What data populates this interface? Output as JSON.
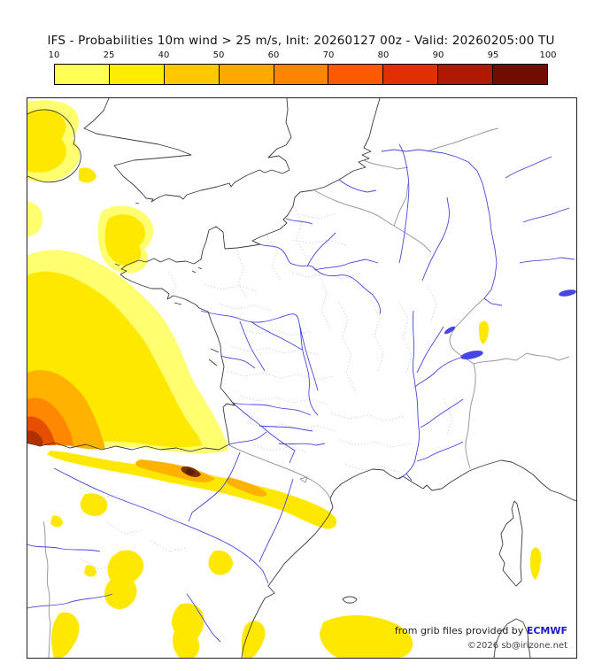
{
  "title": "IFS - Probabilities 10m wind > 25 m/s, Init: 20260127 00z - Valid: 20260205:00 TU",
  "colorbar": {
    "tick_labels": [
      "10",
      "25",
      "40",
      "50",
      "60",
      "70",
      "80",
      "90",
      "95",
      "100"
    ],
    "segment_colors": [
      "#ffff54",
      "#ffec00",
      "#ffc800",
      "#ffa800",
      "#ff8400",
      "#fc5a00",
      "#e03000",
      "#b01800",
      "#700c00"
    ]
  },
  "map": {
    "attribution_prefix": "from grib files provided by ",
    "attribution_source": "ECMWF",
    "copyright": "©2026 sb@irizone.net",
    "colors": {
      "coastline": "#3c3c3c",
      "river": "#4646e0",
      "country_border": "#9a9a9a",
      "department_border": "#c4c4c4",
      "shade_light": "#ffff70",
      "shade_yellow": "#ffe800",
      "shade_orange": "#ffb200",
      "shade_deep_orange": "#ff8800",
      "shade_red": "#e64e00",
      "shade_dark_red": "#b03000",
      "shade_maroon": "#7a3000",
      "shade_dark_brown": "#571f00"
    }
  }
}
